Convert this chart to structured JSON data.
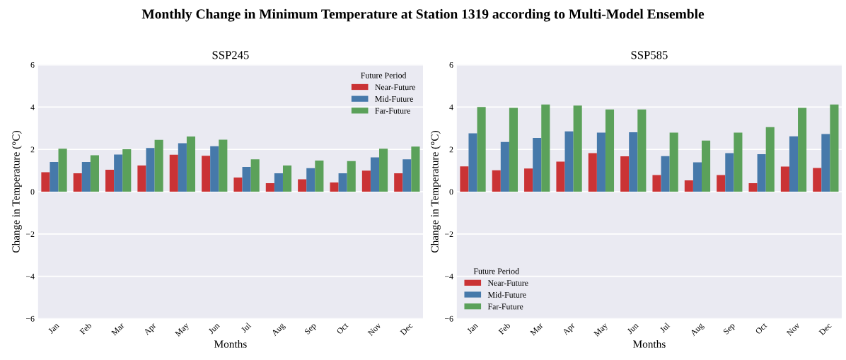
{
  "chart_data": [
    {
      "type": "bar",
      "title": "SSP245",
      "annotations": [
        "Monthly Change in Minimum Temperature at Station 1319 according to Multi-Model Ensemble"
      ],
      "xlabel": "Months",
      "ylabel": "Change in Temperature (°C)",
      "legend_title": "Future Period",
      "legend": "top right",
      "grid": "y",
      "ylim": [
        -6,
        6
      ],
      "yticks": [
        -6,
        -4,
        -2,
        0,
        2,
        4,
        6
      ],
      "categories": [
        "Jan",
        "Feb",
        "Mar",
        "Apr",
        "May",
        "Jun",
        "Jul",
        "Aug",
        "Sep",
        "Oct",
        "Nov",
        "Dec"
      ],
      "series": [
        {
          "name": "Near-Future",
          "color": "#ca3335",
          "values": [
            0.92,
            0.87,
            1.04,
            1.24,
            1.75,
            1.7,
            0.67,
            0.4,
            0.59,
            0.44,
            1.0,
            0.87
          ]
        },
        {
          "name": "Mid-Future",
          "color": "#4679aa",
          "values": [
            1.41,
            1.41,
            1.76,
            2.07,
            2.29,
            2.15,
            1.17,
            0.87,
            1.11,
            0.87,
            1.62,
            1.53
          ]
        },
        {
          "name": "Far-Future",
          "color": "#5ba15a",
          "values": [
            2.03,
            1.72,
            2.01,
            2.45,
            2.61,
            2.46,
            1.53,
            1.24,
            1.47,
            1.45,
            2.03,
            2.13
          ]
        }
      ]
    },
    {
      "type": "bar",
      "title": "SSP585",
      "xlabel": "Months",
      "ylabel": "Change in Temperature (°C)",
      "legend_title": "Future Period",
      "legend": "bottom left",
      "grid": "y",
      "ylim": [
        -6,
        6
      ],
      "yticks": [
        -6,
        -4,
        -2,
        0,
        2,
        4,
        6
      ],
      "categories": [
        "Jan",
        "Feb",
        "Mar",
        "Apr",
        "May",
        "Jun",
        "Jul",
        "Aug",
        "Sep",
        "Oct",
        "Nov",
        "Dec"
      ],
      "series": [
        {
          "name": "Near-Future",
          "color": "#ca3335",
          "values": [
            1.2,
            1.01,
            1.1,
            1.42,
            1.82,
            1.67,
            0.79,
            0.54,
            0.79,
            0.4,
            1.19,
            1.12
          ]
        },
        {
          "name": "Mid-Future",
          "color": "#4679aa",
          "values": [
            2.76,
            2.35,
            2.54,
            2.85,
            2.79,
            2.81,
            1.68,
            1.39,
            1.82,
            1.77,
            2.62,
            2.73
          ]
        },
        {
          "name": "Far-Future",
          "color": "#5ba15a",
          "values": [
            4.01,
            3.96,
            4.12,
            4.07,
            3.89,
            3.89,
            2.79,
            2.42,
            2.79,
            3.05,
            3.96,
            4.12
          ]
        }
      ]
    }
  ]
}
